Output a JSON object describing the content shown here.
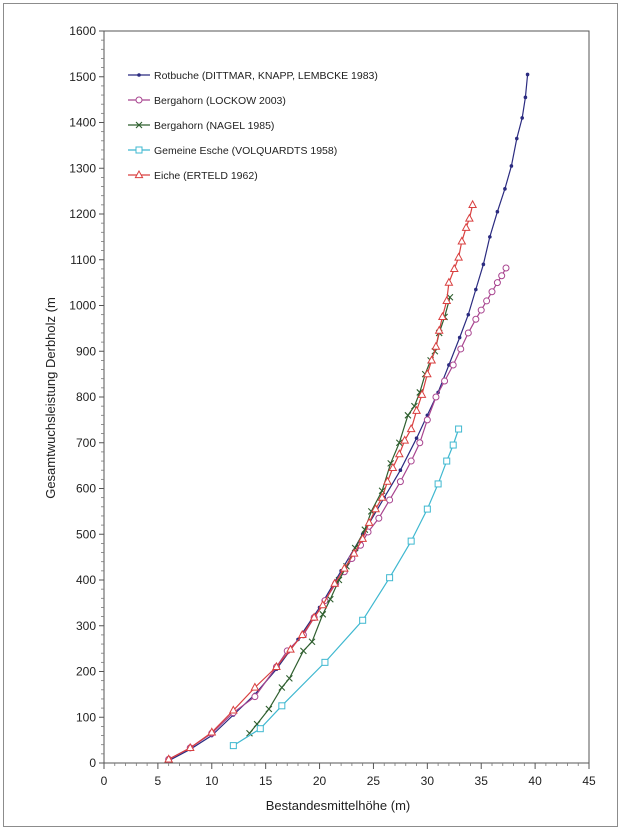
{
  "chart_data": {
    "type": "line",
    "xlabel": "Bestandesmittelhöhe (m)",
    "ylabel": "Gesamtwuchsleistung Derbholz (m",
    "xlim": [
      0,
      45
    ],
    "ylim": [
      0,
      1600
    ],
    "x_ticks": [
      0,
      5,
      10,
      15,
      20,
      25,
      30,
      35,
      40,
      45
    ],
    "y_ticks": [
      0,
      100,
      200,
      300,
      400,
      500,
      600,
      700,
      800,
      900,
      1000,
      1100,
      1200,
      1300,
      1400,
      1500,
      1600
    ],
    "grid": false,
    "legend_position": "top-left",
    "series": [
      {
        "name": "Rotbuche (DITTMAR, KNAPP, LEMBCKE 1983)",
        "color": "#2b2b80",
        "marker": "dot",
        "points": [
          [
            6.0,
            5
          ],
          [
            8.0,
            30
          ],
          [
            10.0,
            60
          ],
          [
            12.0,
            105
          ],
          [
            14.0,
            150
          ],
          [
            16.0,
            205
          ],
          [
            18.0,
            270
          ],
          [
            20.0,
            340
          ],
          [
            22.0,
            420
          ],
          [
            24.0,
            500
          ],
          [
            26.0,
            580
          ],
          [
            27.5,
            640
          ],
          [
            29.0,
            710
          ],
          [
            30.0,
            760
          ],
          [
            31.0,
            810
          ],
          [
            32.0,
            870
          ],
          [
            33.0,
            930
          ],
          [
            33.8,
            980
          ],
          [
            34.5,
            1035
          ],
          [
            35.2,
            1090
          ],
          [
            35.8,
            1150
          ],
          [
            36.5,
            1205
          ],
          [
            37.2,
            1255
          ],
          [
            37.8,
            1305
          ],
          [
            38.3,
            1365
          ],
          [
            38.8,
            1410
          ],
          [
            39.1,
            1455
          ],
          [
            39.3,
            1505
          ]
        ]
      },
      {
        "name": "Bergahorn (LOCKOW 2003)",
        "color": "#a8448f",
        "marker": "circle",
        "points": [
          [
            6.0,
            8
          ],
          [
            8.0,
            33
          ],
          [
            10.0,
            65
          ],
          [
            12.0,
            110
          ],
          [
            14.0,
            145
          ],
          [
            16.0,
            210
          ],
          [
            17.0,
            245
          ],
          [
            18.5,
            280
          ],
          [
            19.5,
            318
          ],
          [
            20.5,
            355
          ],
          [
            21.5,
            392
          ],
          [
            22.3,
            418
          ],
          [
            23.0,
            447
          ],
          [
            23.8,
            476
          ],
          [
            24.5,
            505
          ],
          [
            25.5,
            535
          ],
          [
            26.5,
            575
          ],
          [
            27.5,
            615
          ],
          [
            28.5,
            660
          ],
          [
            29.3,
            700
          ],
          [
            30.0,
            750
          ],
          [
            30.8,
            800
          ],
          [
            31.6,
            835
          ],
          [
            32.4,
            870
          ],
          [
            33.1,
            905
          ],
          [
            33.8,
            940
          ],
          [
            34.5,
            970
          ],
          [
            35.0,
            990
          ],
          [
            35.5,
            1010
          ],
          [
            36.0,
            1030
          ],
          [
            36.5,
            1050
          ],
          [
            36.9,
            1065
          ],
          [
            37.3,
            1082
          ]
        ]
      },
      {
        "name": "Bergahorn (NAGEL 1985)",
        "color": "#2f5f2f",
        "marker": "x",
        "points": [
          [
            13.5,
            65
          ],
          [
            14.2,
            85
          ],
          [
            15.3,
            118
          ],
          [
            16.5,
            165
          ],
          [
            17.2,
            185
          ],
          [
            18.5,
            245
          ],
          [
            19.3,
            265
          ],
          [
            20.3,
            325
          ],
          [
            21.0,
            358
          ],
          [
            21.8,
            400
          ],
          [
            22.5,
            430
          ],
          [
            23.3,
            470
          ],
          [
            24.2,
            510
          ],
          [
            24.8,
            550
          ],
          [
            25.8,
            595
          ],
          [
            26.6,
            655
          ],
          [
            27.4,
            700
          ],
          [
            28.2,
            760
          ],
          [
            28.8,
            780
          ],
          [
            29.3,
            810
          ],
          [
            29.8,
            850
          ],
          [
            30.3,
            880
          ],
          [
            30.7,
            900
          ],
          [
            31.1,
            940
          ],
          [
            31.6,
            975
          ],
          [
            32.1,
            1018
          ]
        ]
      },
      {
        "name": "Gemeine Esche (VOLQUARDTS 1958)",
        "color": "#3fb8d0",
        "marker": "square",
        "points": [
          [
            12.0,
            38
          ],
          [
            14.5,
            75
          ],
          [
            16.5,
            125
          ],
          [
            20.5,
            220
          ],
          [
            24.0,
            312
          ],
          [
            26.5,
            405
          ],
          [
            28.5,
            485
          ],
          [
            30.0,
            555
          ],
          [
            31.0,
            610
          ],
          [
            31.8,
            660
          ],
          [
            32.4,
            695
          ],
          [
            32.9,
            730
          ]
        ]
      },
      {
        "name": "Eiche (ERTELD 1962)",
        "color": "#d94040",
        "marker": "triangle",
        "points": [
          [
            6.0,
            8
          ],
          [
            8.0,
            33
          ],
          [
            10.0,
            67
          ],
          [
            12.0,
            115
          ],
          [
            14.0,
            165
          ],
          [
            16.0,
            210
          ],
          [
            17.3,
            248
          ],
          [
            18.4,
            280
          ],
          [
            19.5,
            318
          ],
          [
            20.3,
            345
          ],
          [
            21.4,
            392
          ],
          [
            22.3,
            425
          ],
          [
            23.2,
            458
          ],
          [
            24.0,
            490
          ],
          [
            24.6,
            525
          ],
          [
            25.2,
            555
          ],
          [
            25.8,
            580
          ],
          [
            26.3,
            615
          ],
          [
            26.8,
            645
          ],
          [
            27.4,
            675
          ],
          [
            27.9,
            705
          ],
          [
            28.5,
            730
          ],
          [
            29.0,
            770
          ],
          [
            29.5,
            805
          ],
          [
            30.0,
            850
          ],
          [
            30.4,
            880
          ],
          [
            30.8,
            910
          ],
          [
            31.1,
            945
          ],
          [
            31.4,
            975
          ],
          [
            31.8,
            1010
          ],
          [
            32.0,
            1050
          ],
          [
            32.5,
            1080
          ],
          [
            32.9,
            1105
          ],
          [
            33.2,
            1140
          ],
          [
            33.6,
            1170
          ],
          [
            33.9,
            1190
          ],
          [
            34.2,
            1220
          ]
        ]
      }
    ]
  }
}
